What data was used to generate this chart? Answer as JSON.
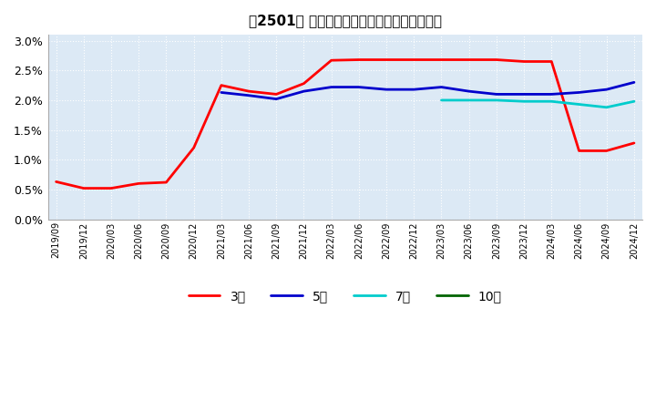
{
  "title": "【2501】 経常利益マージンの標準偏差の推移",
  "ylim": [
    0.0,
    0.031
  ],
  "yticks": [
    0.0,
    0.005,
    0.01,
    0.015,
    0.02,
    0.025,
    0.03
  ],
  "ytick_labels": [
    "0.0%",
    "0.5%",
    "1.0%",
    "1.5%",
    "2.0%",
    "2.5%",
    "3.0%"
  ],
  "series": {
    "3年": {
      "color": "#ff0000",
      "linewidth": 2.0,
      "data": [
        [
          "2019/09",
          0.0063
        ],
        [
          "2019/12",
          0.0052
        ],
        [
          "2020/03",
          0.0052
        ],
        [
          "2020/06",
          0.006
        ],
        [
          "2020/09",
          0.0062
        ],
        [
          "2020/12",
          0.012
        ],
        [
          "2021/03",
          0.0225
        ],
        [
          "2021/06",
          0.0215
        ],
        [
          "2021/09",
          0.021
        ],
        [
          "2021/12",
          0.0228
        ],
        [
          "2022/03",
          0.0267
        ],
        [
          "2022/06",
          0.0268
        ],
        [
          "2022/09",
          0.0268
        ],
        [
          "2022/12",
          0.0268
        ],
        [
          "2023/03",
          0.0268
        ],
        [
          "2023/06",
          0.0268
        ],
        [
          "2023/09",
          0.0268
        ],
        [
          "2023/12",
          0.0265
        ],
        [
          "2024/03",
          0.0265
        ],
        [
          "2024/06",
          0.0115
        ],
        [
          "2024/09",
          0.0115
        ],
        [
          "2024/12",
          0.0128
        ]
      ]
    },
    "5年": {
      "color": "#0000cc",
      "linewidth": 2.0,
      "data": [
        [
          "2019/09",
          null
        ],
        [
          "2019/12",
          null
        ],
        [
          "2020/03",
          null
        ],
        [
          "2020/06",
          null
        ],
        [
          "2020/09",
          null
        ],
        [
          "2020/12",
          null
        ],
        [
          "2021/03",
          0.0213
        ],
        [
          "2021/06",
          0.0208
        ],
        [
          "2021/09",
          0.0202
        ],
        [
          "2021/12",
          0.0215
        ],
        [
          "2022/03",
          0.0222
        ],
        [
          "2022/06",
          0.0222
        ],
        [
          "2022/09",
          0.0218
        ],
        [
          "2022/12",
          0.0218
        ],
        [
          "2023/03",
          0.0222
        ],
        [
          "2023/06",
          0.0215
        ],
        [
          "2023/09",
          0.021
        ],
        [
          "2023/12",
          0.021
        ],
        [
          "2024/03",
          0.021
        ],
        [
          "2024/06",
          0.0213
        ],
        [
          "2024/09",
          0.0218
        ],
        [
          "2024/12",
          0.023
        ]
      ]
    },
    "7年": {
      "color": "#00cccc",
      "linewidth": 2.0,
      "data": [
        [
          "2019/09",
          null
        ],
        [
          "2019/12",
          null
        ],
        [
          "2020/03",
          null
        ],
        [
          "2020/06",
          null
        ],
        [
          "2020/09",
          null
        ],
        [
          "2020/12",
          null
        ],
        [
          "2021/03",
          null
        ],
        [
          "2021/06",
          null
        ],
        [
          "2021/09",
          null
        ],
        [
          "2021/12",
          null
        ],
        [
          "2022/03",
          null
        ],
        [
          "2022/06",
          null
        ],
        [
          "2022/09",
          null
        ],
        [
          "2022/12",
          null
        ],
        [
          "2023/03",
          0.02
        ],
        [
          "2023/06",
          0.02
        ],
        [
          "2023/09",
          0.02
        ],
        [
          "2023/12",
          0.0198
        ],
        [
          "2024/03",
          0.0198
        ],
        [
          "2024/06",
          0.0193
        ],
        [
          "2024/09",
          0.0188
        ],
        [
          "2024/12",
          0.0198
        ]
      ]
    },
    "10年": {
      "color": "#006400",
      "linewidth": 2.0,
      "data": [
        [
          "2019/09",
          null
        ],
        [
          "2019/12",
          null
        ],
        [
          "2020/03",
          null
        ],
        [
          "2020/06",
          null
        ],
        [
          "2020/09",
          null
        ],
        [
          "2020/12",
          null
        ],
        [
          "2021/03",
          null
        ],
        [
          "2021/06",
          null
        ],
        [
          "2021/09",
          null
        ],
        [
          "2021/12",
          null
        ],
        [
          "2022/03",
          null
        ],
        [
          "2022/06",
          null
        ],
        [
          "2022/09",
          null
        ],
        [
          "2022/12",
          null
        ],
        [
          "2023/03",
          null
        ],
        [
          "2023/06",
          null
        ],
        [
          "2023/09",
          null
        ],
        [
          "2023/12",
          null
        ],
        [
          "2024/03",
          null
        ],
        [
          "2024/06",
          null
        ],
        [
          "2024/09",
          null
        ],
        [
          "2024/12",
          null
        ]
      ]
    }
  },
  "x_labels": [
    "2019/09",
    "2019/12",
    "2020/03",
    "2020/06",
    "2020/09",
    "2020/12",
    "2021/03",
    "2021/06",
    "2021/09",
    "2021/12",
    "2022/03",
    "2022/06",
    "2022/09",
    "2022/12",
    "2023/03",
    "2023/06",
    "2023/09",
    "2023/12",
    "2024/03",
    "2024/06",
    "2024/09",
    "2024/12"
  ],
  "plot_bg_color": "#dce9f5",
  "background_color": "#ffffff",
  "grid_color": "#ffffff",
  "legend_entries": [
    "3年",
    "5年",
    "7年",
    "10年"
  ]
}
